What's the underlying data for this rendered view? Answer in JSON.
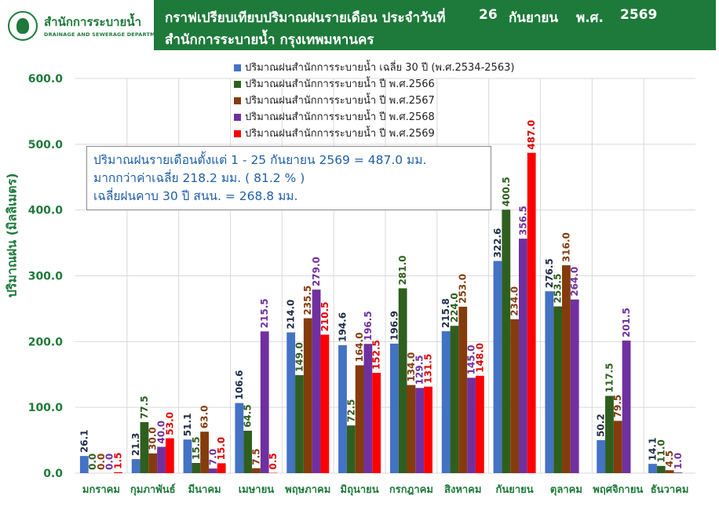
{
  "header": {
    "logo_th": "สำนักการระบายน้ำ",
    "logo_en": "DRAINAGE AND SEWERAGE DEPARTMENT",
    "title_line1": "กราฟเปรียบเทียบปริมาณฝนรายเดือน ประจำวันที่",
    "title_day": "26",
    "title_month": "กันยายน",
    "title_era": "พ.ศ.",
    "title_year": "2569",
    "title_line2": "สำนักการระบายน้ำ กรุงเทพมหานคร"
  },
  "info": {
    "line1": "ปริมาณฝนรายเดือนตั้งแต่ 1 - 25 กันยายน 2569 = 487.0 มม.",
    "line2": "มากกว่าค่าเฉลี่ย 218.2  มม. ( 81.2 % )",
    "line3": "เฉลี่ยฝนคาบ 30 ปี สนน. = 268.8 มม."
  },
  "chart_data": {
    "type": "bar",
    "ylabel": "ปริมาณฝน (มิลลิเมตร)",
    "xlabel": "",
    "ylim": [
      0,
      600
    ],
    "yticks": [
      "0.0",
      "100.0",
      "200.0",
      "300.0",
      "400.0",
      "500.0",
      "600.0"
    ],
    "grid": true,
    "legend_position": "top-center",
    "categories": [
      "มกราคม",
      "กุมภาพันธ์",
      "มีนาคม",
      "เมษายน",
      "พฤษภาคม",
      "มิถุนายน",
      "กรกฎาคม",
      "สิงหาคม",
      "กันยายน",
      "ตุลาคม",
      "พฤศจิกายน",
      "ธันวาคม"
    ],
    "series": [
      {
        "name": "ปริมาณฝนสำนักการระบายน้ำ เฉลี่ย 30 ปี (พ.ศ.2534-2563)",
        "color": "#4472c4",
        "label_color": "#1f2d4a",
        "values": [
          26.1,
          21.3,
          51.1,
          106.6,
          214.0,
          194.6,
          196.9,
          215.8,
          322.6,
          276.5,
          50.2,
          14.1
        ],
        "labels": [
          "26.1",
          "21.3",
          "51.1",
          "106.6",
          "214.0",
          "194.6",
          "196.9",
          "215.8",
          "322.6",
          "276.5",
          "50.2",
          "14.1"
        ]
      },
      {
        "name": "ปริมาณฝนสำนักการระบายน้ำ ปี พ.ศ.2566",
        "color": "#2f5f1e",
        "label_color": "#2f5f1e",
        "values": [
          0.0,
          77.5,
          15.5,
          64.5,
          149.0,
          72.5,
          281.0,
          224.0,
          400.5,
          253.5,
          117.5,
          11.0
        ],
        "labels": [
          "0.0",
          "77.5",
          "15.5",
          "64.5",
          "149.0",
          "72.5",
          "281.0",
          "224.0",
          "400.5",
          "253.5",
          "117.5",
          "11.0"
        ]
      },
      {
        "name": "ปริมาณฝนสำนักการระบายน้ำ ปี พ.ศ.2567",
        "color": "#843c0c",
        "label_color": "#843c0c",
        "values": [
          0.0,
          30.0,
          63.0,
          7.5,
          235.5,
          164.0,
          134.0,
          253.0,
          234.0,
          316.0,
          79.5,
          4.5
        ],
        "labels": [
          "0.0",
          "30.0",
          "63.0",
          "7.5",
          "235.5",
          "164.0",
          "134.0",
          "253.0",
          "234.0",
          "316.0",
          "79.5",
          "4.5"
        ]
      },
      {
        "name": "ปริมาณฝนสำนักการระบายน้ำ ปี พ.ศ.2568",
        "color": "#7030a0",
        "label_color": "#7030a0",
        "values": [
          0.0,
          40.0,
          7.0,
          215.5,
          279.0,
          196.5,
          129.5,
          145.0,
          356.5,
          264.0,
          201.5,
          1.0
        ],
        "labels": [
          "0.0",
          "40.0",
          "7.0",
          "215.5",
          "279.0",
          "196.5",
          "129.5",
          "145.0",
          "356.5",
          "264.0",
          "201.5",
          "1.0"
        ]
      },
      {
        "name": "ปริมาณฝนสำนักการระบายน้ำ ปี พ.ศ.2569",
        "color": "#ff0000",
        "label_color": "#e00000",
        "values": [
          1.5,
          53.0,
          15.0,
          0.5,
          210.5,
          152.5,
          131.5,
          148.0,
          487.0,
          null,
          null,
          null
        ],
        "labels": [
          "1.5",
          "53.0",
          "15.0",
          "0.5",
          "210.5",
          "152.5",
          "131.5",
          "148.0",
          "487.0",
          null,
          null,
          null
        ]
      }
    ]
  }
}
